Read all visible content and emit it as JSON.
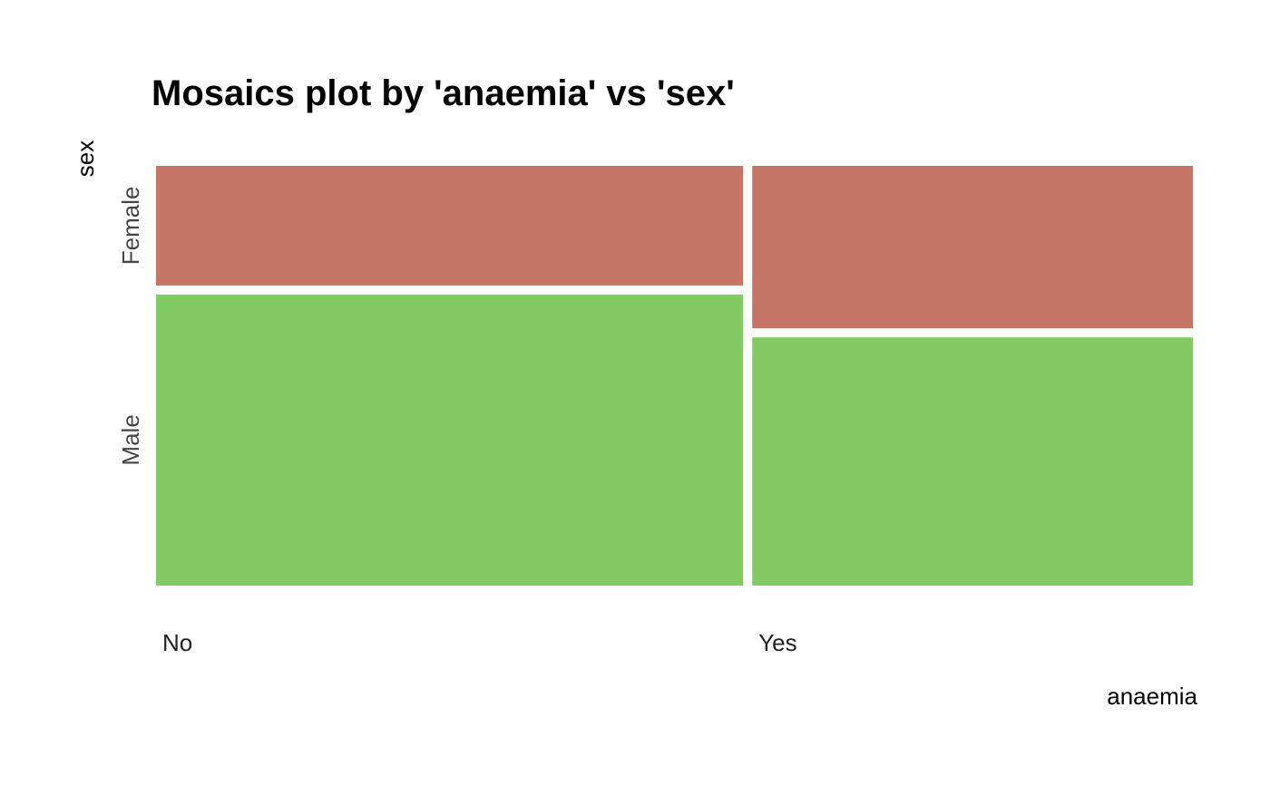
{
  "chart_data": {
    "type": "mosaic",
    "title": "Mosaics plot by 'anaemia' vs 'sex'",
    "xlabel": "anaemia",
    "ylabel": "sex",
    "grid": false,
    "legend": "none",
    "x_categories": [
      "No",
      "Yes"
    ],
    "x_proportions": [
      0.57,
      0.43
    ],
    "y_categories": [
      "Female",
      "Male"
    ],
    "cells": [
      {
        "x": "No",
        "y": "Female",
        "proportion_within_x": 0.3
      },
      {
        "x": "No",
        "y": "Male",
        "proportion_within_x": 0.7
      },
      {
        "x": "Yes",
        "y": "Female",
        "proportion_within_x": 0.4
      },
      {
        "x": "Yes",
        "y": "Male",
        "proportion_within_x": 0.6
      }
    ],
    "colors": {
      "Female": "#c57565",
      "Male": "#82cb63"
    }
  }
}
